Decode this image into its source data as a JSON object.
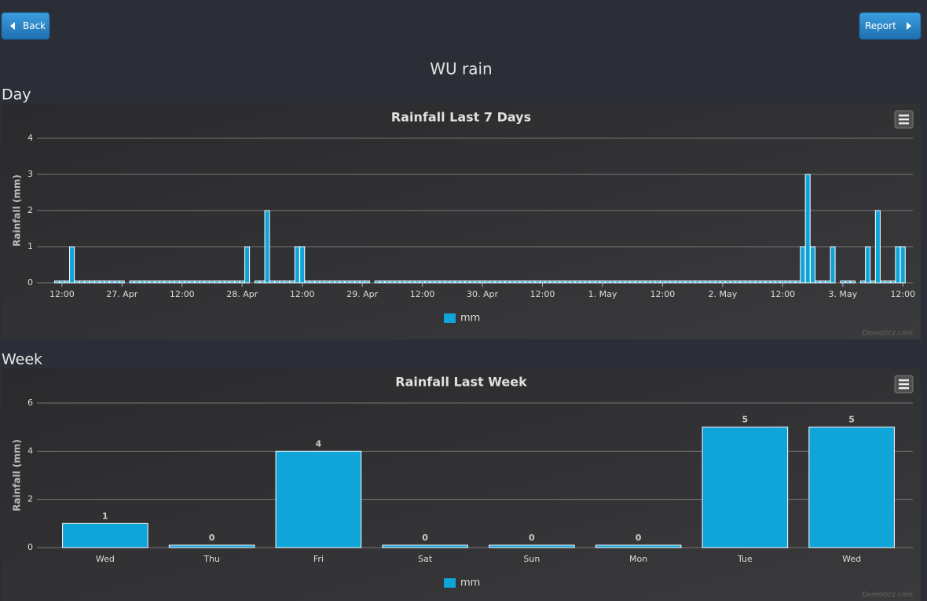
{
  "buttons": {
    "back": "Back",
    "report": "Report"
  },
  "page_title": "WU rain",
  "section_labels": [
    "Day",
    "Week"
  ],
  "chart_data": [
    {
      "type": "bar",
      "title": "Rainfall Last 7 Days",
      "y_label": "Rainfall (mm)",
      "legend": "mm",
      "credits": "Domoticz.com",
      "color": "#10a5d9",
      "grid": true,
      "xlim": [
        7,
        182
      ],
      "xticks": [
        {
          "value": 12,
          "label": "12:00"
        },
        {
          "value": 24,
          "label": "27. Apr"
        },
        {
          "value": 36,
          "label": "12:00"
        },
        {
          "value": 48,
          "label": "28. Apr"
        },
        {
          "value": 60,
          "label": "12:00"
        },
        {
          "value": 72,
          "label": "29. Apr"
        },
        {
          "value": 84,
          "label": "12:00"
        },
        {
          "value": 96,
          "label": "30. Apr"
        },
        {
          "value": 108,
          "label": "12:00"
        },
        {
          "value": 120,
          "label": "1. May"
        },
        {
          "value": 132,
          "label": "12:00"
        },
        {
          "value": 144,
          "label": "2. May"
        },
        {
          "value": 156,
          "label": "12:00"
        },
        {
          "value": 168,
          "label": "3. May"
        },
        {
          "value": 180,
          "label": "12:00"
        }
      ],
      "ylim": [
        0,
        4
      ],
      "yticks": [
        0,
        1,
        2,
        3,
        4
      ],
      "x": [
        11,
        12,
        13,
        14,
        15,
        16,
        17,
        18,
        19,
        20,
        21,
        22,
        23,
        24,
        26,
        27,
        28,
        29,
        30,
        31,
        32,
        33,
        34,
        35,
        36,
        37,
        38,
        39,
        40,
        41,
        42,
        43,
        44,
        45,
        46,
        47,
        48,
        49,
        51,
        52,
        53,
        54,
        55,
        56,
        57,
        58,
        59,
        60,
        61,
        62,
        63,
        64,
        65,
        66,
        67,
        68,
        69,
        70,
        71,
        72,
        73,
        75,
        76,
        77,
        78,
        79,
        80,
        81,
        82,
        83,
        84,
        85,
        86,
        87,
        88,
        89,
        90,
        91,
        92,
        93,
        94,
        95,
        96,
        97,
        98,
        99,
        100,
        101,
        102,
        103,
        104,
        105,
        106,
        107,
        108,
        109,
        110,
        111,
        112,
        113,
        114,
        115,
        116,
        117,
        118,
        119,
        120,
        121,
        122,
        123,
        124,
        125,
        126,
        127,
        128,
        129,
        130,
        131,
        132,
        133,
        134,
        135,
        136,
        137,
        138,
        139,
        140,
        141,
        142,
        143,
        144,
        145,
        146,
        147,
        148,
        149,
        150,
        151,
        152,
        153,
        154,
        155,
        156,
        157,
        158,
        159,
        160,
        161,
        162,
        163,
        164,
        165,
        166,
        168,
        169,
        170,
        172,
        173,
        174,
        175,
        176,
        177,
        178,
        179,
        180
      ],
      "values": [
        0.05,
        0.05,
        0.05,
        1,
        0.05,
        0.05,
        0.05,
        0.05,
        0.05,
        0.05,
        0.05,
        0.05,
        0.05,
        0.05,
        0.05,
        0.05,
        0.05,
        0.05,
        0.05,
        0.05,
        0.05,
        0.05,
        0.05,
        0.05,
        0.05,
        0.05,
        0.05,
        0.05,
        0.05,
        0.05,
        0.05,
        0.05,
        0.05,
        0.05,
        0.05,
        0.05,
        0.05,
        1,
        0.05,
        0.05,
        2,
        0.05,
        0.05,
        0.05,
        0.05,
        0.05,
        1,
        1,
        0.05,
        0.05,
        0.05,
        0.05,
        0.05,
        0.05,
        0.05,
        0.05,
        0.05,
        0.05,
        0.05,
        0.05,
        0.05,
        0.05,
        0.05,
        0.05,
        0.05,
        0.05,
        0.05,
        0.05,
        0.05,
        0.05,
        0.05,
        0.05,
        0.05,
        0.05,
        0.05,
        0.05,
        0.05,
        0.05,
        0.05,
        0.05,
        0.05,
        0.05,
        0.05,
        0.05,
        0.05,
        0.05,
        0.05,
        0.05,
        0.05,
        0.05,
        0.05,
        0.05,
        0.05,
        0.05,
        0.05,
        0.05,
        0.05,
        0.05,
        0.05,
        0.05,
        0.05,
        0.05,
        0.05,
        0.05,
        0.05,
        0.05,
        0.05,
        0.05,
        0.05,
        0.05,
        0.05,
        0.05,
        0.05,
        0.05,
        0.05,
        0.05,
        0.05,
        0.05,
        0.05,
        0.05,
        0.05,
        0.05,
        0.05,
        0.05,
        0.05,
        0.05,
        0.05,
        0.05,
        0.05,
        0.05,
        0.05,
        0.05,
        0.05,
        0.05,
        0.05,
        0.05,
        0.05,
        0.05,
        0.05,
        0.05,
        0.05,
        0.05,
        0.05,
        0.05,
        0.05,
        0.05,
        1,
        3,
        1,
        0.05,
        0.05,
        0.05,
        1,
        0.05,
        0.05,
        0.05,
        0.05,
        1,
        0.05,
        2,
        0.05,
        0.05,
        0.05,
        1,
        1
      ]
    },
    {
      "type": "bar",
      "title": "Rainfall Last Week",
      "y_label": "Rainfall (mm)",
      "legend": "mm",
      "credits": "Domoticz.com",
      "color": "#10a5d9",
      "grid": true,
      "categories": [
        "Wed",
        "Thu",
        "Fri",
        "Sat",
        "Sun",
        "Mon",
        "Tue",
        "Wed"
      ],
      "values": [
        1,
        0.1,
        4,
        0.1,
        0.1,
        0.1,
        5,
        5
      ],
      "value_labels": [
        "1",
        "0",
        "4",
        "0",
        "0",
        "0",
        "5",
        "5"
      ],
      "ylim": [
        0,
        6
      ],
      "yticks": [
        0,
        2,
        4,
        6
      ]
    }
  ]
}
